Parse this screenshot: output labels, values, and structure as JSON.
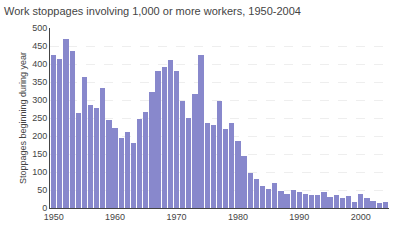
{
  "chart_data": {
    "type": "bar",
    "title": "Work stoppages involving 1,000 or more workers, 1950-2004",
    "ylabel": "Stoppages beginning during year",
    "x": [
      1950,
      1951,
      1952,
      1953,
      1954,
      1955,
      1956,
      1957,
      1958,
      1959,
      1960,
      1961,
      1962,
      1963,
      1964,
      1965,
      1966,
      1967,
      1968,
      1969,
      1970,
      1971,
      1972,
      1973,
      1974,
      1975,
      1976,
      1977,
      1978,
      1979,
      1980,
      1981,
      1982,
      1983,
      1984,
      1985,
      1986,
      1987,
      1988,
      1989,
      1990,
      1991,
      1992,
      1993,
      1994,
      1995,
      1996,
      1997,
      1998,
      1999,
      2000,
      2001,
      2002,
      2003,
      2004
    ],
    "values": [
      424,
      415,
      470,
      437,
      265,
      363,
      287,
      279,
      332,
      245,
      222,
      195,
      211,
      181,
      246,
      268,
      321,
      381,
      392,
      412,
      381,
      298,
      250,
      317,
      424,
      235,
      231,
      298,
      219,
      235,
      187,
      145,
      96,
      81,
      62,
      54,
      69,
      46,
      40,
      51,
      44,
      40,
      35,
      35,
      45,
      31,
      37,
      29,
      34,
      17,
      39,
      29,
      19,
      14,
      17
    ],
    "color": "#8888cc",
    "xlim": [
      1949.4,
      2004.6
    ],
    "xticks": [
      1950,
      1960,
      1970,
      1980,
      1990,
      2000
    ],
    "ylim": [
      0,
      500
    ],
    "yticks": [
      0,
      50,
      100,
      150,
      200,
      250,
      300,
      350,
      400,
      450,
      500
    ],
    "grid": true
  }
}
